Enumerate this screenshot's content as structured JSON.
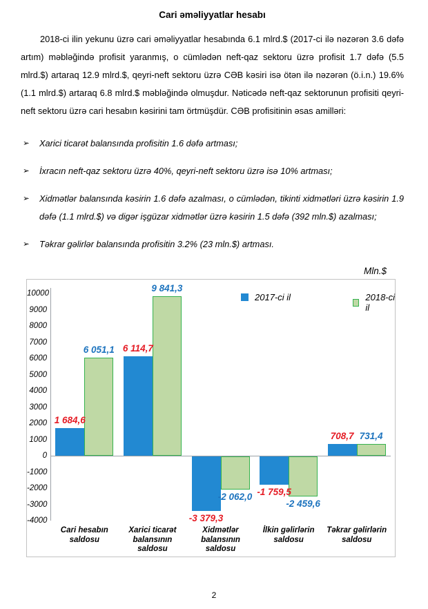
{
  "page": {
    "title": "Cari əməliyyatlar hesabı",
    "paragraph": "2018-ci ilin yekunu üzrə cari əməliyyatlar hesabında 6.1 mlrd.$ (2017-ci ilə nəzərən 3.6 dəfə artım) məbləğində profisit yaranmış, o cümlədən neft-qaz sektoru üzrə profisit 1.7 dəfə (5.5 mlrd.$) artaraq 12.9 mlrd.$, qeyri-neft sektoru üzrə CƏB kəsiri isə ötən ilə nəzərən (ö.i.n.) 19.6% (1.1 mlrd.$) artaraq 6.8 mlrd.$ məbləğində olmuşdur. Nəticədə neft-qaz sektorunun profisiti qeyri-neft sektoru üzrə cari hesabın kəsirini tam örtmüşdür. CƏB profisitinin əsas amilləri:",
    "bullet_marker": "➢",
    "bullets": [
      "Xarici ticarət balansında profisitin 1.6 dəfə artması;",
      "İxracın neft-qaz sektoru üzrə 40%, qeyri-neft sektoru üzrə isə 10% artması;",
      "Xidmətlər balansında kəsirin 1.6 dəfə azalması, o cümlədən, tikinti xidmətləri üzrə kəsirin 1.9 dəfə (1.1 mlrd.$) və digər işgüzar xidmətlər üzrə kəsirin 1.5 dəfə (392 mln.$) azalması;",
      "Təkrar gəlirlər balansında profisitin 3.2% (23 mln.$) artması."
    ],
    "page_number": "2"
  },
  "chart_data": {
    "type": "bar",
    "unit_label": "Mln.$",
    "categories": [
      "Cari hesabın\nsaldosu",
      "Xarici ticarət\nbalansının\nsaldosu",
      "Xidmətlər\nbalansının\nsaldosu",
      "İlkin gəlirlərin\nsaldosu",
      "Təkrar gəlirlərin\nsaldosu"
    ],
    "series": [
      {
        "name": "2017-ci il",
        "values": [
          1684.6,
          6114.7,
          -3379.3,
          -1759.5,
          708.7
        ],
        "value_labels": [
          "1 684,6",
          "6 114,7",
          "-3 379,3",
          "-1 759,5",
          "708,7"
        ],
        "bar_color": "#2289D2",
        "bar_border_color": "#2289D2",
        "value_label_color": "#E51B24"
      },
      {
        "name": "2018-ci il",
        "values": [
          6051.1,
          9841.3,
          -2062.0,
          -2459.6,
          731.4
        ],
        "value_labels": [
          "6 051,1",
          "9 841,3",
          "-2 062,0",
          "-2 459,6",
          "731,4"
        ],
        "bar_color": "#BFD9A5",
        "bar_border_color": "#35B24E",
        "value_label_color": "#1C73BE"
      }
    ],
    "ylim": [
      -4000,
      10000
    ],
    "ytick_step": 1000,
    "grid": false,
    "legend_position": "top-inside",
    "axis_color": "#9aa0a6"
  }
}
